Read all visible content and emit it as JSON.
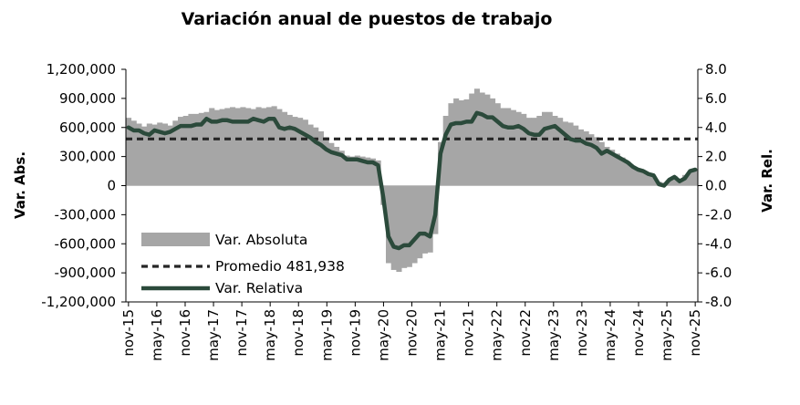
{
  "chart_data": {
    "type": "area",
    "title": "Variación anual de puestos de trabajo",
    "ylabel": "Var. Abs.",
    "y2label": "Var. Rel.",
    "ylim": [
      -1200000,
      1200000
    ],
    "y2lim": [
      -8.0,
      8.0
    ],
    "yticks": [
      "1,200,000",
      "900,000",
      "600,000",
      "300,000",
      "0",
      "-300,000",
      "-600,000",
      "-900,000",
      "-1,200,000"
    ],
    "y2ticks": [
      "8.0",
      "6.0",
      "4.0",
      "2.0",
      "0.0",
      "-2.0",
      "-4.0",
      "-6.0",
      "-8.0"
    ],
    "xticks": [
      "nov-15",
      "may-16",
      "nov-16",
      "may-17",
      "nov-17",
      "may-18",
      "nov-18",
      "may-19",
      "nov-19",
      "may-20",
      "nov-20",
      "may-21",
      "nov-21",
      "may-22",
      "nov-22",
      "may-23",
      "nov-23",
      "may-24",
      "nov-24",
      "may-25",
      "nov-25"
    ],
    "legend_position": "bottom-left",
    "grid": false,
    "colors": {
      "absoluta": "#a6a6a6",
      "promedio": "#262626",
      "relativa": "#2b4a3b"
    },
    "series": [
      {
        "name": "Var. Absoluta",
        "axis": "left",
        "kind": "bars",
        "values": [
          700000,
          670000,
          640000,
          610000,
          640000,
          630000,
          650000,
          640000,
          620000,
          670000,
          710000,
          720000,
          740000,
          740000,
          750000,
          760000,
          800000,
          780000,
          790000,
          800000,
          810000,
          800000,
          810000,
          800000,
          790000,
          810000,
          800000,
          810000,
          820000,
          790000,
          760000,
          730000,
          710000,
          700000,
          680000,
          630000,
          600000,
          560000,
          500000,
          440000,
          400000,
          360000,
          310000,
          300000,
          310000,
          300000,
          290000,
          280000,
          260000,
          -200000,
          -800000,
          -870000,
          -890000,
          -850000,
          -840000,
          -800000,
          -750000,
          -700000,
          -690000,
          -500000,
          450000,
          720000,
          850000,
          900000,
          880000,
          890000,
          950000,
          1000000,
          960000,
          940000,
          900000,
          850000,
          800000,
          800000,
          780000,
          760000,
          740000,
          700000,
          700000,
          720000,
          760000,
          760000,
          720000,
          700000,
          660000,
          650000,
          620000,
          580000,
          560000,
          530000,
          500000,
          450000,
          400000,
          370000,
          330000,
          290000,
          250000,
          200000,
          170000,
          150000,
          120000,
          90000,
          40000,
          30000,
          60000,
          100000,
          70000,
          110000,
          150000,
          160000
        ]
      },
      {
        "name": "Promedio 481,938",
        "axis": "left",
        "kind": "hline",
        "value": 481938
      },
      {
        "name": "Var. Relativa",
        "axis": "right",
        "kind": "line",
        "values": [
          4.0,
          3.8,
          3.8,
          3.6,
          3.5,
          3.8,
          3.7,
          3.6,
          3.7,
          3.9,
          4.1,
          4.1,
          4.1,
          4.2,
          4.2,
          4.6,
          4.4,
          4.4,
          4.5,
          4.5,
          4.4,
          4.4,
          4.4,
          4.4,
          4.6,
          4.5,
          4.4,
          4.6,
          4.6,
          4.0,
          3.9,
          4.0,
          3.9,
          3.7,
          3.5,
          3.3,
          3.0,
          2.8,
          2.5,
          2.3,
          2.2,
          2.1,
          1.8,
          1.8,
          1.8,
          1.7,
          1.6,
          1.6,
          1.4,
          -0.8,
          -3.5,
          -4.2,
          -4.3,
          -4.1,
          -4.1,
          -3.7,
          -3.3,
          -3.3,
          -3.5,
          -2.0,
          2.2,
          3.5,
          4.2,
          4.3,
          4.3,
          4.4,
          4.4,
          5.0,
          4.9,
          4.7,
          4.7,
          4.4,
          4.1,
          4.0,
          4.0,
          4.1,
          3.9,
          3.6,
          3.5,
          3.5,
          3.9,
          4.0,
          4.1,
          3.8,
          3.5,
          3.2,
          3.1,
          3.1,
          2.9,
          2.8,
          2.6,
          2.2,
          2.4,
          2.2,
          2.0,
          1.8,
          1.6,
          1.3,
          1.1,
          1.0,
          0.8,
          0.7,
          0.1,
          0.0,
          0.4,
          0.6,
          0.3,
          0.5,
          1.0,
          1.1
        ]
      }
    ]
  }
}
